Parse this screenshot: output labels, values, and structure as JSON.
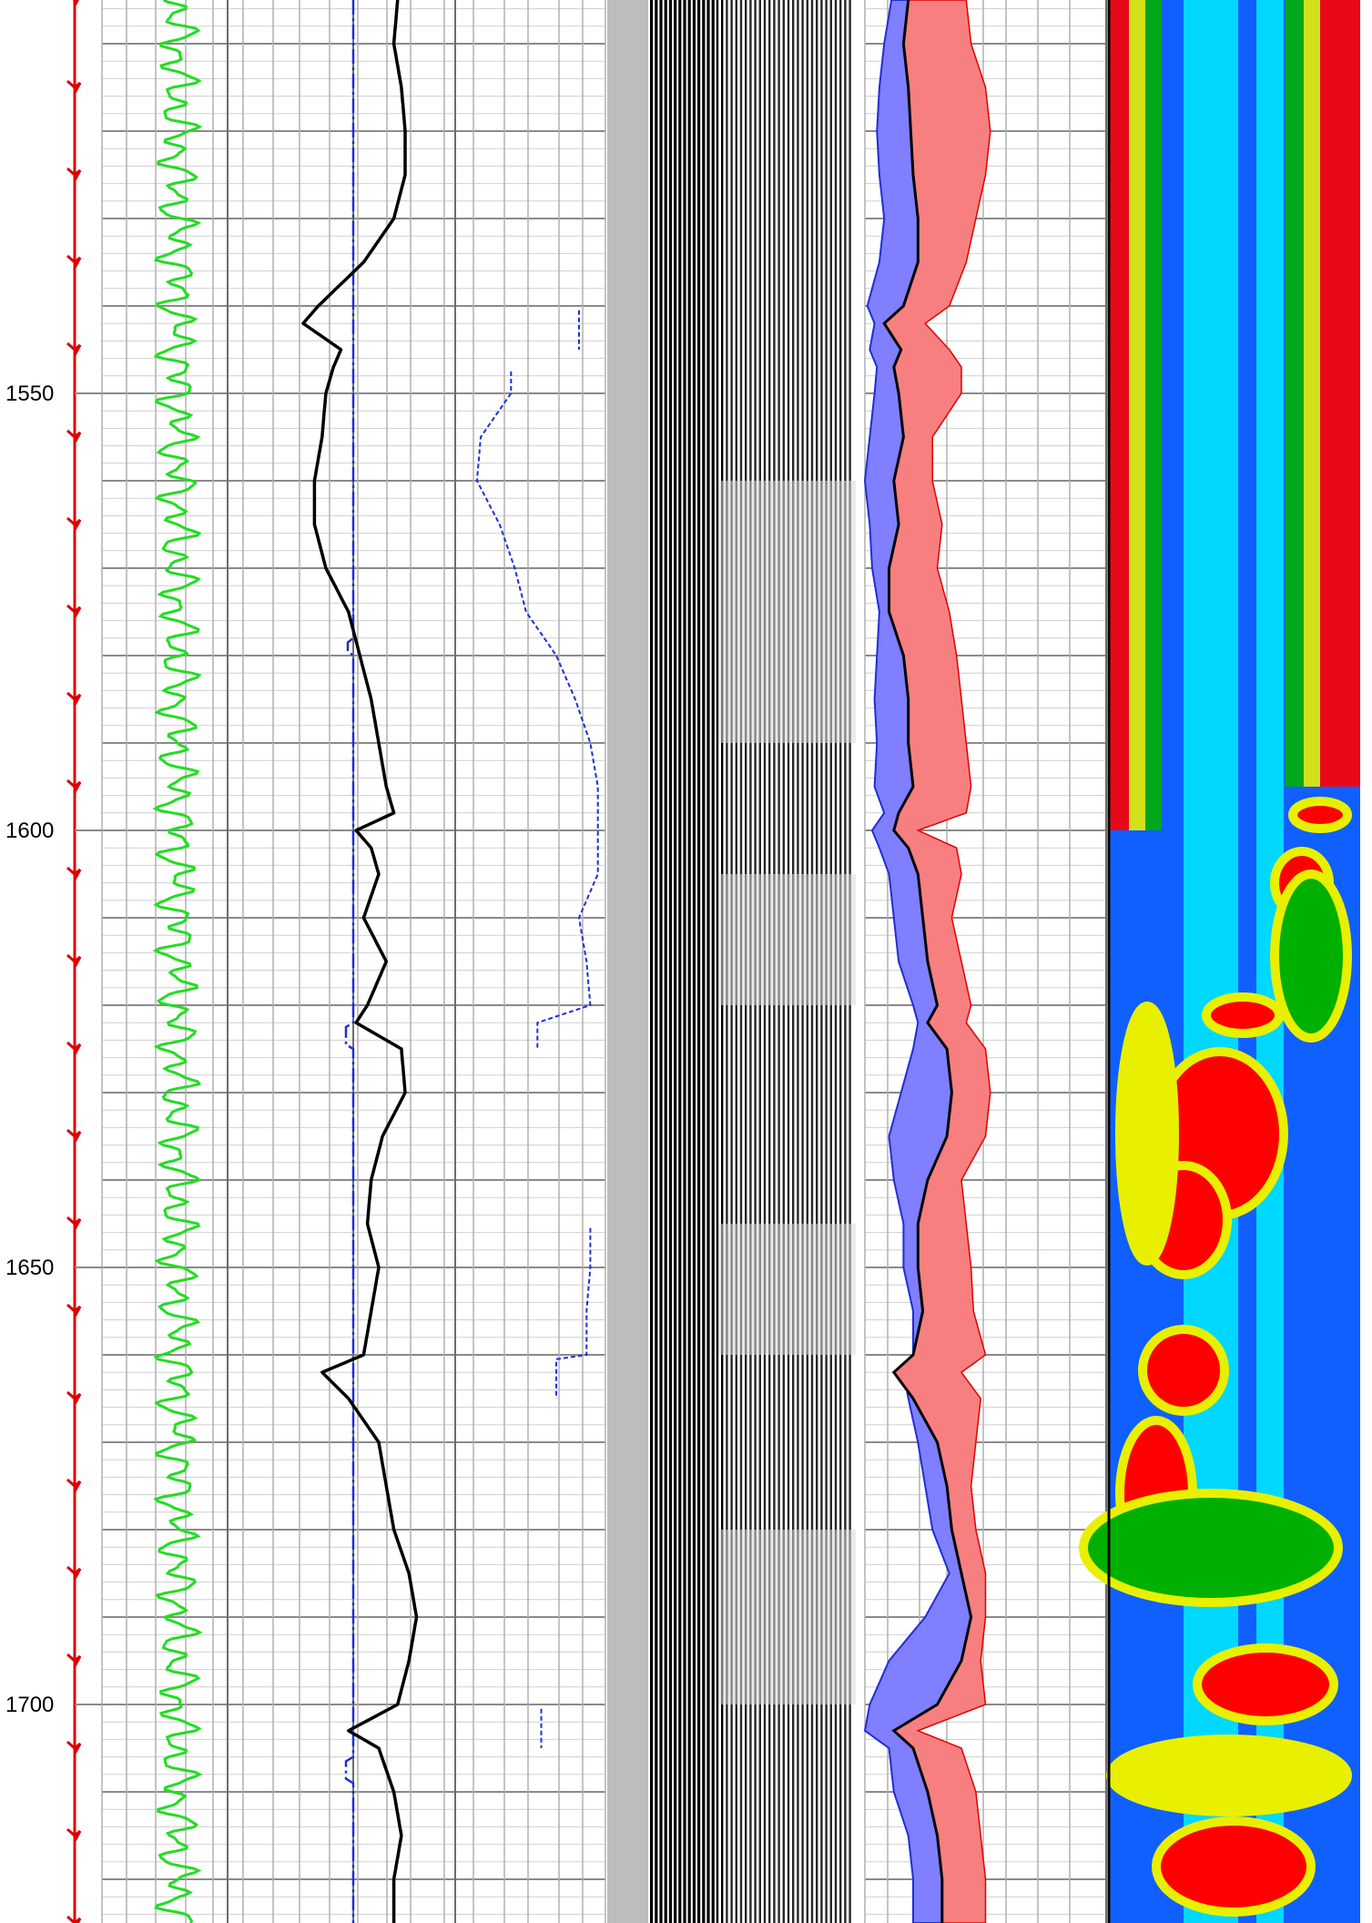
{
  "chart_data": {
    "type": "well-log",
    "depth_axis": {
      "range": [
        1505,
        1725
      ],
      "labels": [
        "1550",
        "1600",
        "1650",
        "1700"
      ],
      "major_step": 10,
      "minor_step": 2
    },
    "tracks": [
      {
        "kind": "curves",
        "curves": [
          {
            "color": "#22dd22",
            "style": "solid",
            "amplitude": "oscillating"
          },
          {
            "color": "#1f2fd6",
            "style": "dashdot",
            "amplitude": "near-constant"
          }
        ]
      },
      {
        "kind": "curves",
        "curves": [
          {
            "color": "#000000",
            "style": "solid"
          },
          {
            "color": "#1f2fd6",
            "style": "dashed"
          }
        ]
      },
      {
        "kind": "waveform-variable-density",
        "colors": [
          "#000000",
          "#ffffff",
          "#bdbdbd"
        ]
      },
      {
        "kind": "filled-curves",
        "fills": [
          "#7f7fff",
          "#f77f7f"
        ],
        "boundary_color": "#000000"
      },
      {
        "kind": "color-image",
        "palette": [
          "#1060ff",
          "#00e6ff",
          "#00b000",
          "#e8f000",
          "#ff0000"
        ]
      }
    ],
    "curve_samples": {
      "depth": [
        1505,
        1510,
        1515,
        1520,
        1525,
        1530,
        1535,
        1540,
        1542,
        1545,
        1547,
        1550,
        1555,
        1560,
        1565,
        1570,
        1575,
        1580,
        1585,
        1590,
        1595,
        1598,
        1600,
        1602,
        1605,
        1610,
        1615,
        1620,
        1622,
        1625,
        1630,
        1635,
        1640,
        1645,
        1650,
        1655,
        1660,
        1662,
        1665,
        1670,
        1675,
        1680,
        1685,
        1690,
        1695,
        1700,
        1703,
        1705,
        1710,
        1715,
        1720,
        1725
      ],
      "black_solid": [
        0.45,
        0.44,
        0.46,
        0.47,
        0.47,
        0.44,
        0.36,
        0.24,
        0.2,
        0.3,
        0.28,
        0.26,
        0.25,
        0.23,
        0.23,
        0.26,
        0.32,
        0.35,
        0.38,
        0.4,
        0.42,
        0.44,
        0.34,
        0.38,
        0.4,
        0.36,
        0.42,
        0.37,
        0.34,
        0.46,
        0.47,
        0.41,
        0.38,
        0.37,
        0.4,
        0.38,
        0.36,
        0.25,
        0.32,
        0.4,
        0.42,
        0.44,
        0.48,
        0.5,
        0.48,
        0.45,
        0.32,
        0.4,
        0.44,
        0.46,
        0.44,
        0.44
      ],
      "blue_dashed": [
        null,
        null,
        null,
        null,
        null,
        null,
        null,
        null,
        0.93,
        null,
        null,
        0.75,
        0.67,
        0.66,
        0.72,
        0.76,
        0.79,
        0.87,
        0.92,
        0.96,
        0.98,
        null,
        0.98,
        null,
        0.98,
        0.93,
        0.95,
        0.96,
        0.82,
        null,
        null,
        null,
        null,
        null,
        0.96,
        0.95,
        null,
        0.87,
        null,
        null,
        null,
        null,
        null,
        null,
        null,
        null,
        0.83,
        null,
        null,
        null,
        null,
        null
      ],
      "blue_fill_edge": [
        0.11,
        0.08,
        0.06,
        0.05,
        0.06,
        0.08,
        0.06,
        0.01,
        0.04,
        0.02,
        0.05,
        0.04,
        0.02,
        0.0,
        0.02,
        0.03,
        0.06,
        0.05,
        0.04,
        0.05,
        0.04,
        0.08,
        0.03,
        0.06,
        0.1,
        0.12,
        0.14,
        0.2,
        0.22,
        0.2,
        0.15,
        0.1,
        0.12,
        0.16,
        0.16,
        0.2,
        0.2,
        0.16,
        0.18,
        0.22,
        0.25,
        0.28,
        0.35,
        0.25,
        0.1,
        0.02,
        0.0,
        0.1,
        0.12,
        0.18,
        0.2,
        0.2
      ],
      "black_fill_mid": [
        0.18,
        0.16,
        0.18,
        0.19,
        0.2,
        0.22,
        0.22,
        0.16,
        0.08,
        0.15,
        0.12,
        0.14,
        0.16,
        0.12,
        0.14,
        0.1,
        0.1,
        0.16,
        0.18,
        0.18,
        0.2,
        0.14,
        0.12,
        0.18,
        0.22,
        0.24,
        0.26,
        0.3,
        0.26,
        0.34,
        0.36,
        0.34,
        0.26,
        0.22,
        0.22,
        0.24,
        0.2,
        0.12,
        0.2,
        0.3,
        0.34,
        0.36,
        0.4,
        0.44,
        0.4,
        0.3,
        0.12,
        0.2,
        0.26,
        0.3,
        0.32,
        0.32
      ],
      "red_fill_edge": [
        0.42,
        0.44,
        0.5,
        0.52,
        0.5,
        0.46,
        0.42,
        0.35,
        0.25,
        0.35,
        0.4,
        0.4,
        0.28,
        0.28,
        0.32,
        0.3,
        0.35,
        0.38,
        0.4,
        0.42,
        0.44,
        0.42,
        0.22,
        0.38,
        0.4,
        0.36,
        0.4,
        0.44,
        0.42,
        0.5,
        0.52,
        0.5,
        0.4,
        0.42,
        0.44,
        0.45,
        0.5,
        0.4,
        0.48,
        0.46,
        0.44,
        0.46,
        0.5,
        0.5,
        0.48,
        0.5,
        0.22,
        0.4,
        0.46,
        0.48,
        0.5,
        0.5
      ]
    }
  }
}
